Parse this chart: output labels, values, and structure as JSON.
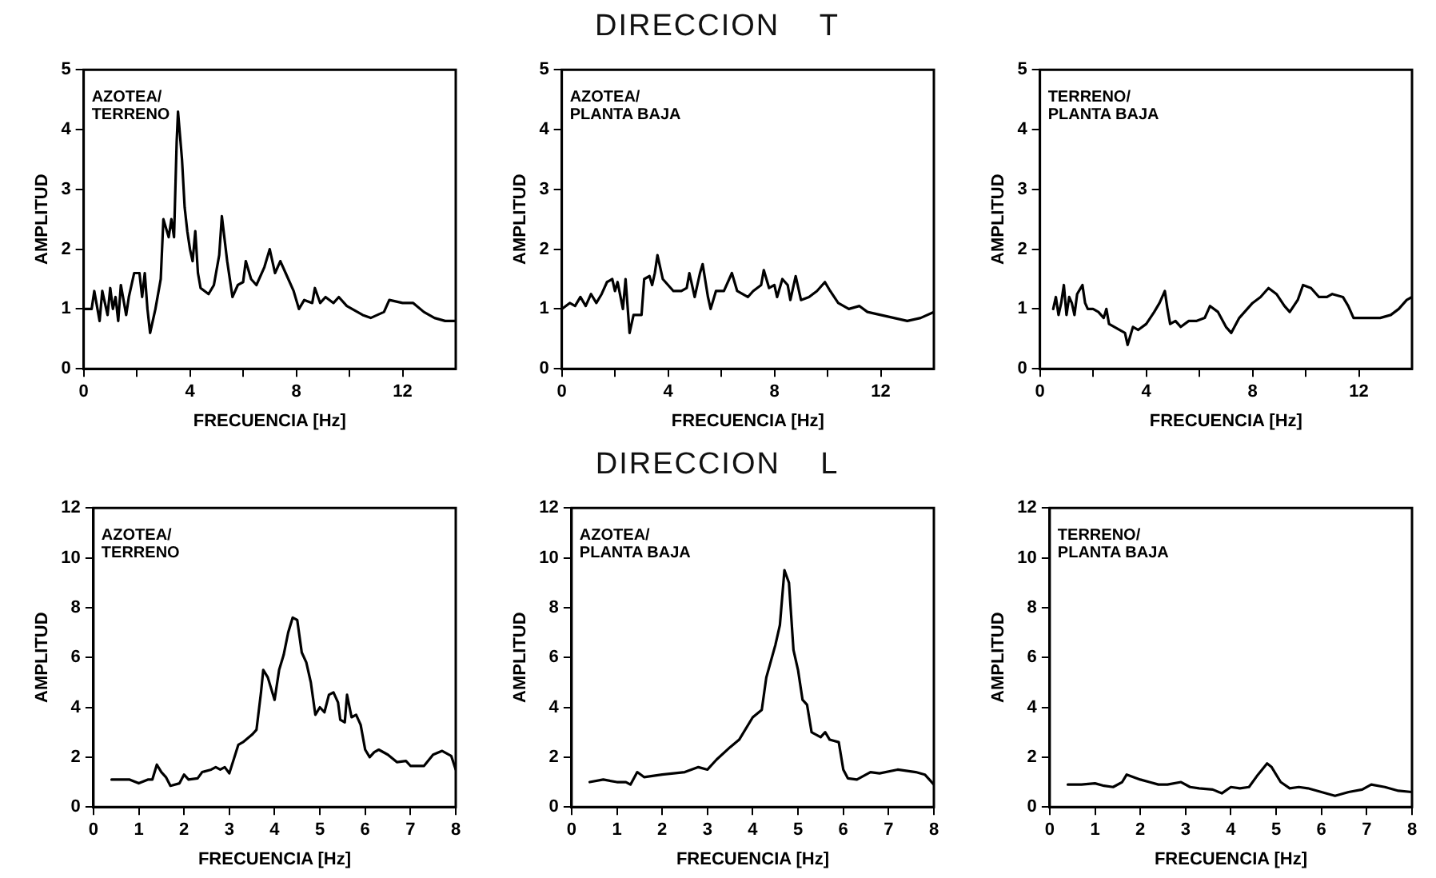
{
  "chart_data": [
    {
      "type": "line",
      "xlabel": "FRECUENCIA [Hz]",
      "ylabel": "AMPLITUD",
      "annotations": [
        "AZOTEA/\nTERRENO"
      ],
      "xlim": [
        0,
        14
      ],
      "ylim": [
        0,
        5
      ],
      "xticks": [
        0,
        {
          "value": 2,
          "label": null
        },
        4,
        {
          "value": 6,
          "label": null
        },
        8,
        {
          "value": 10,
          "label": null
        },
        12
      ],
      "yticks": [
        0,
        1,
        2,
        3,
        4,
        5
      ],
      "grid": false,
      "legend": false,
      "marker": "none",
      "series": [
        {
          "color": "#000000",
          "x": [
            0,
            0.3,
            0.4,
            0.6,
            0.7,
            0.9,
            1.0,
            1.1,
            1.2,
            1.3,
            1.4,
            1.6,
            1.7,
            1.9,
            2.1,
            2.2,
            2.3,
            2.4,
            2.5,
            2.7,
            2.9,
            3.0,
            3.2,
            3.3,
            3.4,
            3.5,
            3.55,
            3.7,
            3.8,
            3.9,
            4.0,
            4.1,
            4.2,
            4.3,
            4.4,
            4.7,
            4.9,
            5.1,
            5.2,
            5.4,
            5.6,
            5.8,
            6.0,
            6.1,
            6.3,
            6.5,
            6.8,
            7.0,
            7.2,
            7.4,
            7.6,
            7.9,
            8.1,
            8.3,
            8.6,
            8.7,
            8.9,
            9.1,
            9.4,
            9.6,
            9.9,
            10.5,
            10.8,
            11.3,
            11.5,
            12.0,
            12.4,
            12.8,
            13.2,
            13.6,
            14
          ],
          "values": [
            1.0,
            1.0,
            1.3,
            0.8,
            1.3,
            0.9,
            1.35,
            1.0,
            1.2,
            0.8,
            1.4,
            0.9,
            1.2,
            1.6,
            1.6,
            1.2,
            1.6,
            1.0,
            0.6,
            1.0,
            1.5,
            2.5,
            2.2,
            2.5,
            2.2,
            3.8,
            4.3,
            3.5,
            2.7,
            2.3,
            2.0,
            1.8,
            2.3,
            1.6,
            1.35,
            1.25,
            1.4,
            1.9,
            2.55,
            1.8,
            1.2,
            1.4,
            1.45,
            1.8,
            1.5,
            1.4,
            1.7,
            2.0,
            1.6,
            1.8,
            1.6,
            1.3,
            1.0,
            1.15,
            1.1,
            1.35,
            1.1,
            1.2,
            1.1,
            1.2,
            1.05,
            0.9,
            0.85,
            0.95,
            1.15,
            1.1,
            1.1,
            0.95,
            0.85,
            0.8,
            0.8
          ]
        }
      ]
    },
    {
      "type": "line",
      "title": "DIRECCION    T",
      "xlabel": "FRECUENCIA [Hz]",
      "ylabel": "AMPLITUD",
      "annotations": [
        "AZOTEA/\nPLANTA BAJA"
      ],
      "xlim": [
        0,
        14
      ],
      "ylim": [
        0,
        5
      ],
      "xticks": [
        0,
        {
          "value": 2,
          "label": null
        },
        4,
        {
          "value": 6,
          "label": null
        },
        8,
        {
          "value": 10,
          "label": null
        },
        12
      ],
      "yticks": [
        0,
        1,
        2,
        3,
        4,
        5
      ],
      "grid": false,
      "legend": false,
      "marker": "none",
      "series": [
        {
          "color": "#000000",
          "x": [
            0,
            0.3,
            0.5,
            0.7,
            0.9,
            1.1,
            1.3,
            1.5,
            1.7,
            1.9,
            2.0,
            2.1,
            2.3,
            2.4,
            2.5,
            2.55,
            2.7,
            3.0,
            3.1,
            3.3,
            3.4,
            3.5,
            3.6,
            3.8,
            4.0,
            4.2,
            4.5,
            4.7,
            4.8,
            5.0,
            5.2,
            5.3,
            5.5,
            5.6,
            5.8,
            6.1,
            6.4,
            6.6,
            7.0,
            7.2,
            7.5,
            7.6,
            7.8,
            8.0,
            8.1,
            8.3,
            8.5,
            8.6,
            8.8,
            9.0,
            9.3,
            9.6,
            9.9,
            10.1,
            10.4,
            10.8,
            11.2,
            11.5,
            12.0,
            12.5,
            13.0,
            13.5,
            14
          ],
          "values": [
            1.0,
            1.1,
            1.05,
            1.2,
            1.05,
            1.25,
            1.1,
            1.25,
            1.45,
            1.5,
            1.3,
            1.45,
            1.0,
            1.5,
            0.9,
            0.6,
            0.9,
            0.9,
            1.5,
            1.55,
            1.4,
            1.6,
            1.9,
            1.5,
            1.4,
            1.3,
            1.3,
            1.35,
            1.6,
            1.2,
            1.6,
            1.75,
            1.2,
            1.0,
            1.3,
            1.3,
            1.6,
            1.3,
            1.2,
            1.3,
            1.4,
            1.65,
            1.35,
            1.4,
            1.2,
            1.5,
            1.4,
            1.15,
            1.55,
            1.15,
            1.2,
            1.3,
            1.45,
            1.3,
            1.1,
            1.0,
            1.05,
            0.95,
            0.9,
            0.85,
            0.8,
            0.85,
            0.95
          ]
        }
      ]
    },
    {
      "type": "line",
      "xlabel": "FRECUENCIA [Hz]",
      "ylabel": "AMPLITUD",
      "annotations": [
        "TERRENO/\nPLANTA BAJA"
      ],
      "xlim": [
        0,
        14
      ],
      "ylim": [
        0,
        5
      ],
      "xticks": [
        0,
        {
          "value": 2,
          "label": null
        },
        4,
        {
          "value": 6,
          "label": null
        },
        8,
        {
          "value": 10,
          "label": null
        },
        12
      ],
      "yticks": [
        0,
        1,
        2,
        3,
        4,
        5
      ],
      "grid": false,
      "legend": false,
      "marker": "none",
      "series": [
        {
          "color": "#000000",
          "x": [
            0.5,
            0.6,
            0.7,
            0.8,
            0.9,
            1.0,
            1.1,
            1.2,
            1.3,
            1.4,
            1.6,
            1.7,
            1.8,
            2.0,
            2.2,
            2.4,
            2.5,
            2.6,
            2.8,
            3.0,
            3.2,
            3.3,
            3.5,
            3.7,
            4.0,
            4.3,
            4.5,
            4.7,
            4.8,
            4.9,
            5.1,
            5.3,
            5.6,
            5.9,
            6.2,
            6.4,
            6.7,
            7.0,
            7.2,
            7.5,
            7.8,
            8.0,
            8.3,
            8.6,
            8.9,
            9.2,
            9.4,
            9.7,
            9.9,
            10.2,
            10.5,
            10.8,
            11.0,
            11.4,
            11.6,
            11.8,
            12.2,
            12.8,
            13.2,
            13.5,
            13.8,
            14
          ],
          "values": [
            1.0,
            1.2,
            0.9,
            1.1,
            1.4,
            0.9,
            1.2,
            1.1,
            0.9,
            1.25,
            1.4,
            1.1,
            1.0,
            1.0,
            0.95,
            0.85,
            1.0,
            0.75,
            0.7,
            0.65,
            0.6,
            0.4,
            0.7,
            0.65,
            0.75,
            0.95,
            1.1,
            1.3,
            1.0,
            0.75,
            0.8,
            0.7,
            0.8,
            0.8,
            0.85,
            1.05,
            0.95,
            0.7,
            0.6,
            0.85,
            1.0,
            1.1,
            1.2,
            1.35,
            1.25,
            1.05,
            0.95,
            1.15,
            1.4,
            1.35,
            1.2,
            1.2,
            1.25,
            1.2,
            1.05,
            0.85,
            0.85,
            0.85,
            0.9,
            1.0,
            1.15,
            1.2
          ]
        }
      ]
    },
    {
      "type": "line",
      "xlabel": "FRECUENCIA [Hz]",
      "ylabel": "AMPLITUD",
      "annotations": [
        "AZOTEA/\nTERRENO"
      ],
      "xlim": [
        0,
        8
      ],
      "ylim": [
        0,
        12
      ],
      "xticks": [
        0,
        1,
        2,
        3,
        4,
        5,
        6,
        7,
        8
      ],
      "yticks": [
        0,
        2,
        4,
        6,
        8,
        10,
        12
      ],
      "grid": false,
      "legend": false,
      "marker": "none",
      "series": [
        {
          "color": "#000000",
          "x": [
            0.4,
            0.6,
            0.8,
            1.0,
            1.2,
            1.3,
            1.4,
            1.5,
            1.6,
            1.7,
            1.9,
            2.0,
            2.1,
            2.3,
            2.4,
            2.6,
            2.7,
            2.8,
            2.9,
            3.0,
            3.2,
            3.3,
            3.5,
            3.6,
            3.7,
            3.75,
            3.85,
            4.0,
            4.1,
            4.2,
            4.3,
            4.4,
            4.5,
            4.6,
            4.7,
            4.8,
            4.9,
            5.0,
            5.1,
            5.2,
            5.3,
            5.4,
            5.45,
            5.55,
            5.6,
            5.7,
            5.8,
            5.9,
            6.0,
            6.1,
            6.2,
            6.3,
            6.5,
            6.7,
            6.9,
            7.0,
            7.3,
            7.5,
            7.7,
            7.9,
            8.0
          ],
          "values": [
            1.1,
            1.1,
            1.1,
            0.95,
            1.1,
            1.1,
            1.7,
            1.4,
            1.2,
            0.85,
            0.95,
            1.3,
            1.1,
            1.15,
            1.4,
            1.5,
            1.6,
            1.5,
            1.6,
            1.35,
            2.5,
            2.6,
            2.9,
            3.1,
            4.6,
            5.5,
            5.2,
            4.3,
            5.5,
            6.1,
            7.0,
            7.6,
            7.5,
            6.2,
            5.8,
            5.0,
            3.7,
            4.0,
            3.8,
            4.5,
            4.6,
            4.2,
            3.5,
            3.4,
            4.5,
            3.6,
            3.7,
            3.3,
            2.3,
            2.0,
            2.2,
            2.3,
            2.1,
            1.8,
            1.85,
            1.65,
            1.65,
            2.1,
            2.25,
            2.05,
            1.5
          ]
        }
      ]
    },
    {
      "type": "line",
      "title": "DIRECCION    L",
      "xlabel": "FRECUENCIA [Hz]",
      "ylabel": "AMPLITUD",
      "annotations": [
        "AZOTEA/\nPLANTA BAJA"
      ],
      "xlim": [
        0,
        8
      ],
      "ylim": [
        0,
        12
      ],
      "xticks": [
        0,
        1,
        2,
        3,
        4,
        5,
        6,
        7,
        8
      ],
      "yticks": [
        0,
        2,
        4,
        6,
        8,
        10,
        12
      ],
      "grid": false,
      "legend": false,
      "marker": "none",
      "series": [
        {
          "color": "#000000",
          "x": [
            0.4,
            0.7,
            1.0,
            1.2,
            1.3,
            1.45,
            1.6,
            2.0,
            2.5,
            2.8,
            3.0,
            3.2,
            3.5,
            3.7,
            4.0,
            4.2,
            4.3,
            4.5,
            4.6,
            4.7,
            4.8,
            4.9,
            5.0,
            5.1,
            5.2,
            5.3,
            5.5,
            5.6,
            5.7,
            5.9,
            6.0,
            6.1,
            6.3,
            6.6,
            6.8,
            7.2,
            7.6,
            7.8,
            8.0
          ],
          "values": [
            1.0,
            1.1,
            1.0,
            1.0,
            0.9,
            1.4,
            1.2,
            1.3,
            1.4,
            1.6,
            1.5,
            1.9,
            2.4,
            2.7,
            3.6,
            3.9,
            5.2,
            6.5,
            7.3,
            9.5,
            9.0,
            6.3,
            5.5,
            4.3,
            4.1,
            3.0,
            2.8,
            3.0,
            2.7,
            2.6,
            1.5,
            1.15,
            1.1,
            1.4,
            1.35,
            1.5,
            1.4,
            1.3,
            0.9
          ]
        }
      ]
    },
    {
      "type": "line",
      "xlabel": "FRECUENCIA [Hz]",
      "ylabel": "AMPLITUD",
      "annotations": [
        "TERRENO/\nPLANTA BAJA"
      ],
      "xlim": [
        0,
        8
      ],
      "ylim": [
        0,
        12
      ],
      "xticks": [
        0,
        1,
        2,
        3,
        4,
        5,
        6,
        7,
        8
      ],
      "yticks": [
        0,
        2,
        4,
        6,
        8,
        10,
        12
      ],
      "grid": false,
      "legend": false,
      "marker": "none",
      "series": [
        {
          "color": "#000000",
          "x": [
            0.4,
            0.7,
            1.0,
            1.2,
            1.4,
            1.6,
            1.7,
            2.0,
            2.2,
            2.4,
            2.6,
            2.9,
            3.1,
            3.3,
            3.6,
            3.8,
            4.0,
            4.2,
            4.4,
            4.6,
            4.8,
            4.9,
            5.1,
            5.3,
            5.5,
            5.7,
            6.0,
            6.3,
            6.6,
            6.9,
            7.1,
            7.4,
            7.7,
            8.0
          ],
          "values": [
            0.9,
            0.9,
            0.95,
            0.85,
            0.8,
            1.0,
            1.3,
            1.1,
            1.0,
            0.9,
            0.9,
            1.0,
            0.8,
            0.75,
            0.7,
            0.55,
            0.8,
            0.75,
            0.8,
            1.3,
            1.75,
            1.6,
            1.0,
            0.75,
            0.8,
            0.75,
            0.6,
            0.45,
            0.6,
            0.7,
            0.9,
            0.8,
            0.65,
            0.6
          ]
        }
      ]
    }
  ]
}
